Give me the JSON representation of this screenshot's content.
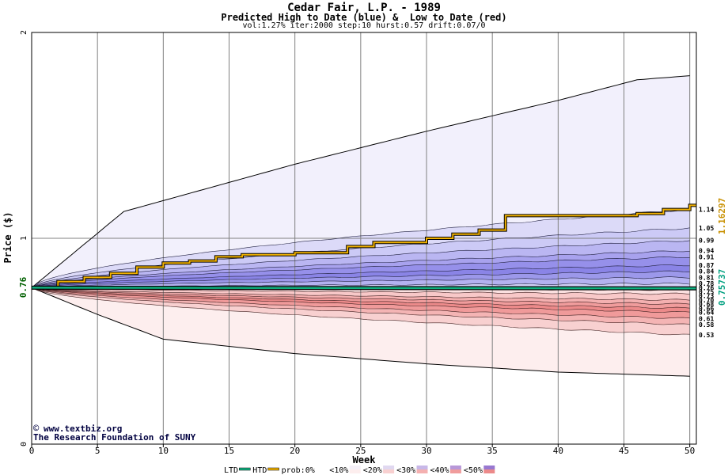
{
  "header": {
    "title": "Cedar Fair, L.P. - 1989",
    "subtitle": "Predicted High to Date (blue) &  Low to Date (red)",
    "params": "vol:1.27% iter:2000 step:10 hurst:0.57 drift:0.07/0"
  },
  "watermark": {
    "url": "www.textbiz.org",
    "org": "The Research Foundation of SUNY"
  },
  "legend": {
    "items": [
      "LTD",
      "HTD",
      "prob:0%",
      "<10%",
      "<20%",
      "<30%",
      "<40%",
      "<50%"
    ],
    "colors": [
      "#ffffff",
      "#ffffff",
      "#ffffff",
      "#f4f0f8",
      "#e0d8f0",
      "#c8b8e8",
      "#b898d8",
      "#9878d0"
    ]
  },
  "chart_data": {
    "type": "area",
    "title": "Cedar Fair, L.P. - 1989",
    "xlabel": "Week",
    "ylabel": "Price ($)",
    "xlim": [
      0,
      50.5
    ],
    "ylim": [
      0,
      2
    ],
    "xticks": [
      "0",
      "5",
      "10",
      "15",
      "20",
      "25",
      "30",
      "35",
      "40",
      "45",
      "50"
    ],
    "yticks": [
      "0",
      "1",
      "2"
    ],
    "start_label": "0.76",
    "start_value": 0.76,
    "htd_label": "1.16297",
    "ltd_label": "0.75737",
    "colors": {
      "htd": "#f0b000",
      "ltd": "#10b080",
      "high_band": "#5050e0",
      "low_band": "#f06060"
    },
    "high_quantiles": [
      {
        "label": "1.14",
        "value": 1.14
      },
      {
        "label": "1.05",
        "value": 1.05
      },
      {
        "label": "0.99",
        "value": 0.99
      },
      {
        "label": "0.94",
        "value": 0.94
      },
      {
        "label": "0.91",
        "value": 0.91
      },
      {
        "label": "0.87",
        "value": 0.87
      },
      {
        "label": "0.84",
        "value": 0.84
      },
      {
        "label": "0.81",
        "value": 0.81
      },
      {
        "label": "0.78",
        "value": 0.78
      },
      {
        "label": "0.76",
        "value": 0.76
      }
    ],
    "low_quantiles": [
      {
        "label": "0.75",
        "value": 0.75
      },
      {
        "label": "0.73",
        "value": 0.73
      },
      {
        "label": "0.70",
        "value": 0.7
      },
      {
        "label": "0.68",
        "value": 0.68
      },
      {
        "label": "0.66",
        "value": 0.66
      },
      {
        "label": "0.64",
        "value": 0.64
      },
      {
        "label": "0.61",
        "value": 0.61
      },
      {
        "label": "0.58",
        "value": 0.58
      },
      {
        "label": "0.53",
        "value": 0.53
      }
    ],
    "high_envelope": {
      "name": "max high",
      "x": [
        0,
        7,
        20,
        30,
        40,
        46,
        50
      ],
      "y": [
        0.76,
        1.13,
        1.36,
        1.52,
        1.67,
        1.77,
        1.79
      ]
    },
    "low_envelope": {
      "name": "min low",
      "x": [
        0,
        5,
        10,
        20,
        30,
        40,
        50
      ],
      "y": [
        0.76,
        0.63,
        0.51,
        0.44,
        0.39,
        0.35,
        0.33
      ]
    },
    "htd_series": {
      "name": "HTD",
      "x": [
        0,
        2,
        4,
        6,
        8,
        10,
        12,
        14,
        16,
        20,
        24,
        26,
        30,
        32,
        34,
        36,
        40,
        44,
        46,
        48,
        50
      ],
      "y": [
        0.76,
        0.79,
        0.81,
        0.83,
        0.86,
        0.88,
        0.89,
        0.91,
        0.92,
        0.93,
        0.96,
        0.98,
        1.0,
        1.02,
        1.04,
        1.11,
        1.11,
        1.11,
        1.12,
        1.14,
        1.16
      ]
    },
    "ltd_series": {
      "name": "LTD",
      "x": [
        0,
        50
      ],
      "y": [
        0.76,
        0.757
      ]
    }
  }
}
